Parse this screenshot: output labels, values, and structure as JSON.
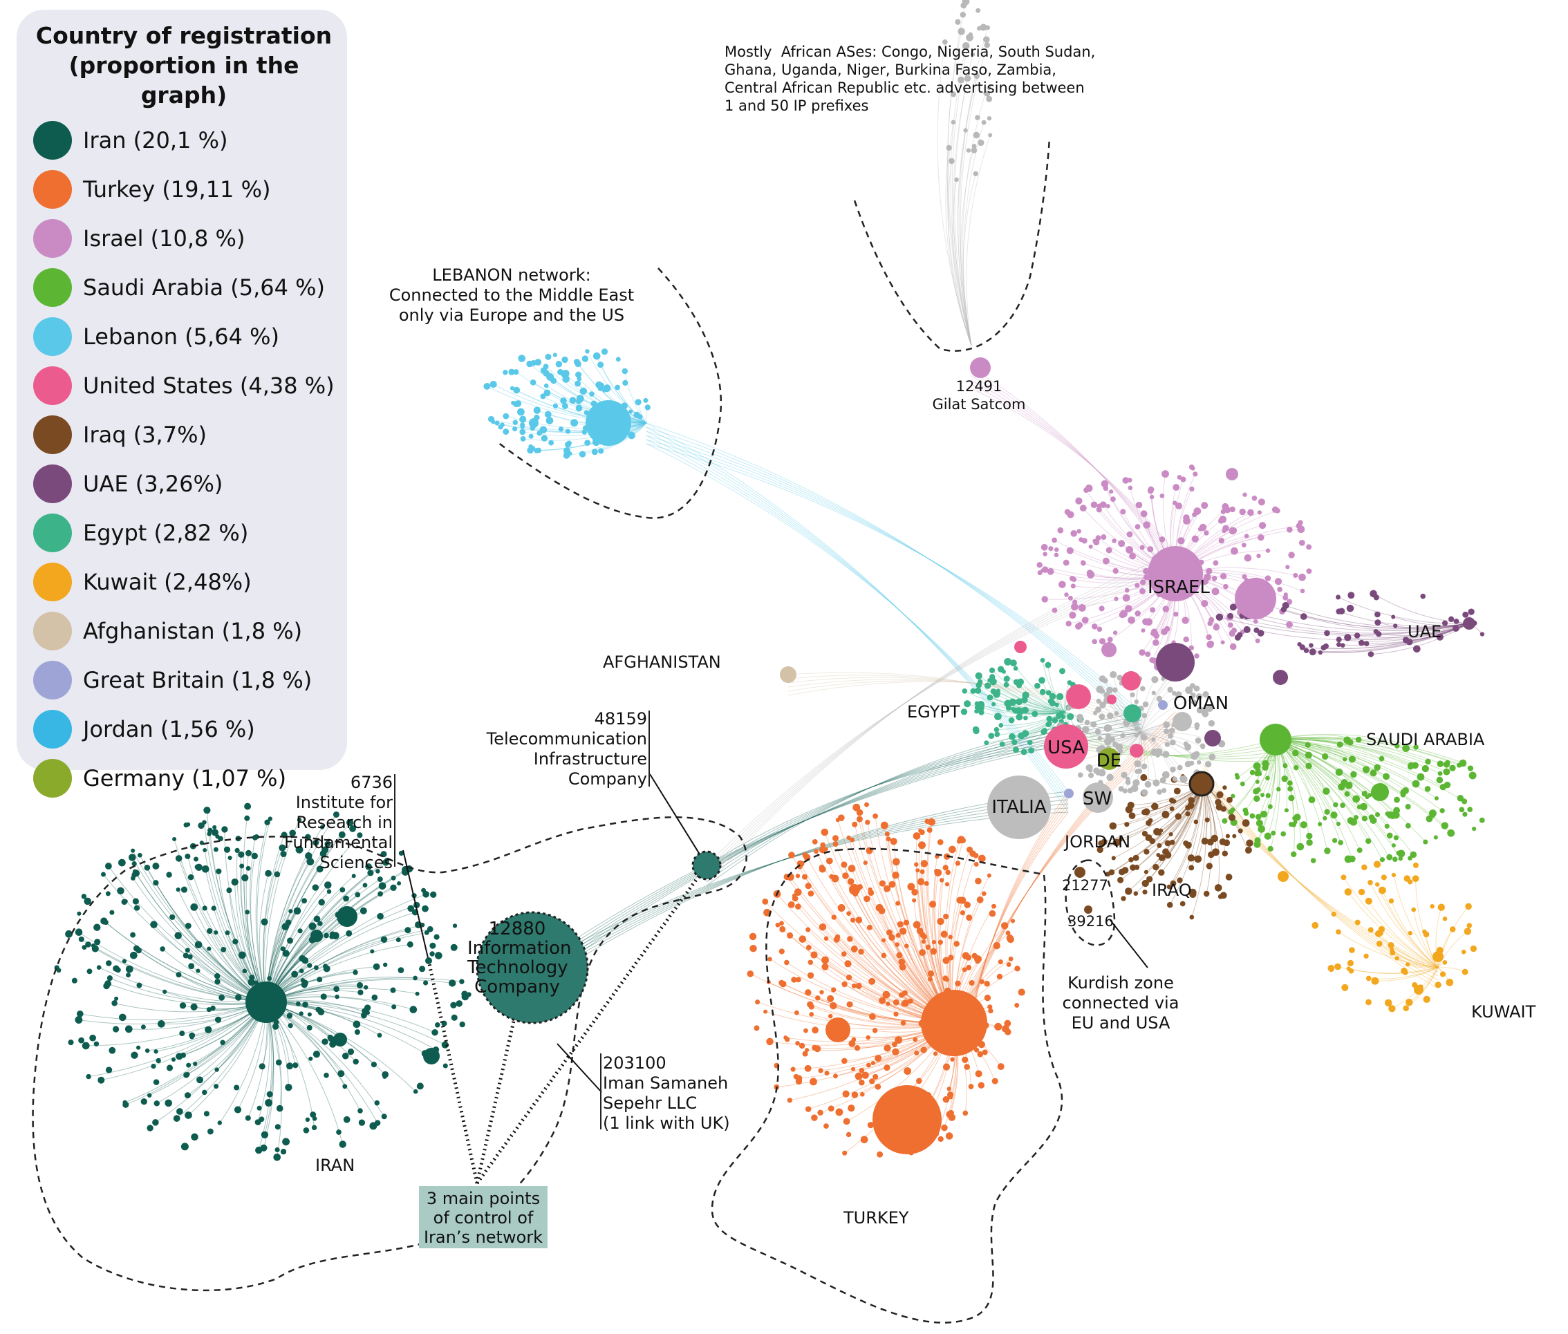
{
  "legend": {
    "title": "Country of registration (proportion in the graph)",
    "items": [
      {
        "label": "Iran (20,1 %)",
        "color": "#0e5c4f"
      },
      {
        "label": "Turkey (19,11 %)",
        "color": "#ee6f30"
      },
      {
        "label": "Israel (10,8 %)",
        "color": "#ca8bc4"
      },
      {
        "label": "Saudi Arabia (5,64 %)",
        "color": "#5cb634"
      },
      {
        "label": "Lebanon (5,64 %)",
        "color": "#5ac8e8"
      },
      {
        "label": "United States (4,38 %)",
        "color": "#ec5b8d"
      },
      {
        "label": "Iraq (3,7%)",
        "color": "#7a4a22"
      },
      {
        "label": "UAE (3,26%)",
        "color": "#7a4a7c"
      },
      {
        "label": "Egypt (2,82 %)",
        "color": "#3db38a"
      },
      {
        "label": "Kuwait (2,48%)",
        "color": "#f2a71e"
      },
      {
        "label": "Afghanistan (1,8 %)",
        "color": "#d4c2a8"
      },
      {
        "label": "Great Britain (1,8 %)",
        "color": "#9ea5d6"
      },
      {
        "label": "Jordan (1,56 %)",
        "color": "#38b6e4"
      },
      {
        "label": "Germany (1,07 %)",
        "color": "#8aaa2c"
      }
    ]
  },
  "labels": {
    "african": "Mostly  African ASes: Congo, Nigeria, South Sudan,\nGhana, Uganda, Niger, Burkina Faso, Zambia,\nCentral African Republic etc. advertising between\n1 and 50 IP prefixes",
    "lebanon": "LEBANON network:\nConnected to the Middle East\nonly via Europe and the US",
    "gilat": "12491\nGilat Satcom",
    "afghanistan": "AFGHANISTAN",
    "egypt": "EGYPT",
    "israel": "ISRAEL",
    "uae": "UAE",
    "oman": "OMAN",
    "usa": "USA",
    "de": "DE",
    "saudi": "SAUDI ARABIA",
    "italia": "ITALIA",
    "sw": "SW",
    "jordan": "JORDAN",
    "iraq": "IRAQ",
    "as21277": "21277",
    "as39216": "39216",
    "kurdish": "Kurdish zone\nconnected via\nEU and USA",
    "kuwait": "KUWAIT",
    "turkey": "TURKEY",
    "iran": "IRAN",
    "as48159": "48159\nTelecommunication\nInfrastructure\nCompany",
    "as6736": "6736\nInstitute for\nResearch in\nFundamental\nSciences",
    "as12880": "12880\nInformation\nTechnology\nCompany",
    "as203100": "203100\nIman Samaneh\nSepehr LLC\n(1 link with UK)",
    "control": "3 main points\nof control of\nIran’s network"
  }
}
